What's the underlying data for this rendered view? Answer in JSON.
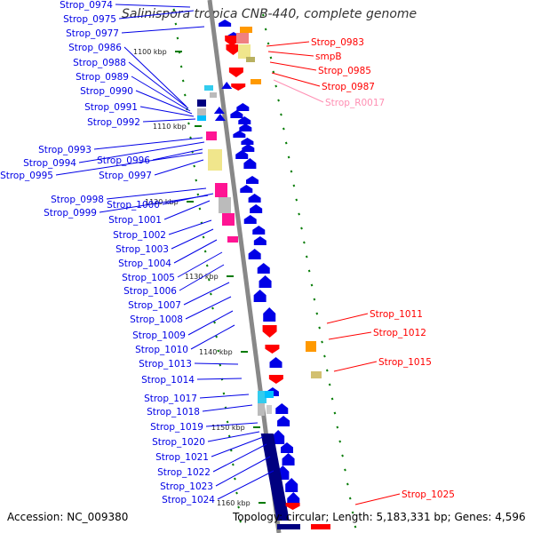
{
  "title": "Salinispora tropica CNB-440, complete genome",
  "accession": "Accession: NC_009380",
  "topology": "Topology: circular; Length: 5,183,331 bp; Genes: 4,596",
  "colors": {
    "forward_gene": "#0000e6",
    "reverse_gene": "#ff0000",
    "dark_gene": "#000080",
    "rna_label": "#ff8fb3",
    "tick": "#007a00",
    "backbone": "#888888"
  },
  "ticks": [
    {
      "label": "1100 kbp"
    },
    {
      "label": "1110 kbp"
    },
    {
      "label": "1120 kbp"
    },
    {
      "label": "1130 kbp"
    },
    {
      "label": "1140 kbp"
    },
    {
      "label": "1150 kbp"
    },
    {
      "label": "1160 kbp"
    }
  ],
  "left_labels": [
    "Strop_0974",
    "Strop_0975",
    "Strop_0977",
    "Strop_0986",
    "Strop_0988",
    "Strop_0989",
    "Strop_0990",
    "Strop_0991",
    "Strop_0992",
    "Strop_0993",
    "Strop_0994",
    "Strop_0996",
    "Strop_0995",
    "Strop_0997",
    "Strop_0998",
    "Strop_1000",
    "Strop_0999",
    "Strop_1001",
    "Strop_1002",
    "Strop_1003",
    "Strop_1004",
    "Strop_1005",
    "Strop_1006",
    "Strop_1007",
    "Strop_1008",
    "Strop_1009",
    "Strop_1010",
    "Strop_1013",
    "Strop_1014",
    "Strop_1017",
    "Strop_1018",
    "Strop_1019",
    "Strop_1020",
    "Strop_1021",
    "Strop_1022",
    "Strop_1023",
    "Strop_1024"
  ],
  "right_labels": [
    {
      "text": "Strop_0983",
      "kind": "gene"
    },
    {
      "text": "smpB",
      "kind": "gene"
    },
    {
      "text": "Strop_0985",
      "kind": "gene"
    },
    {
      "text": "Strop_0987",
      "kind": "gene"
    },
    {
      "text": "Strop_R0017",
      "kind": "rna"
    },
    {
      "text": "Strop_1011",
      "kind": "gene"
    },
    {
      "text": "Strop_1012",
      "kind": "gene"
    },
    {
      "text": "Strop_1015",
      "kind": "gene"
    },
    {
      "text": "Strop_1025",
      "kind": "gene"
    }
  ]
}
